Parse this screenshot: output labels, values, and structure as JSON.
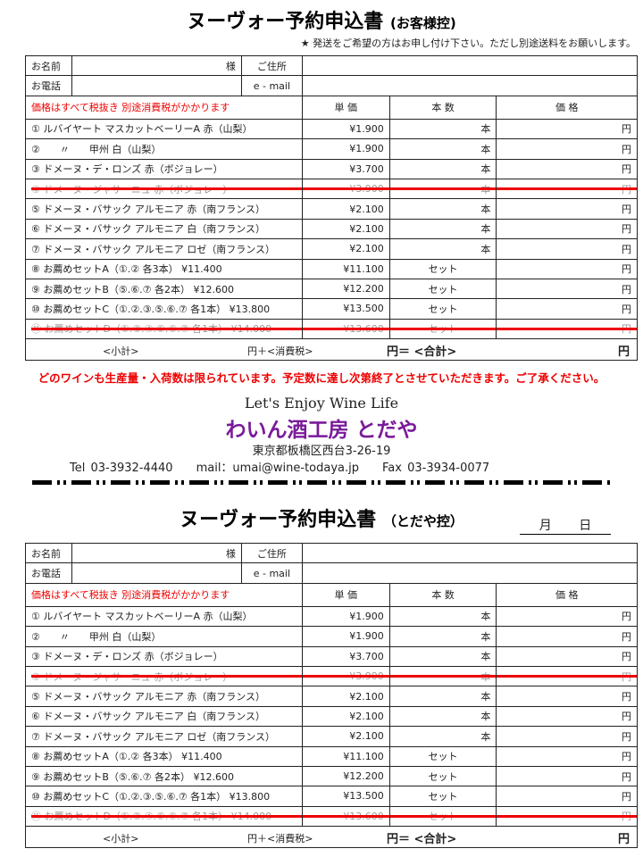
{
  "forms": [
    {
      "title": "ヌーヴォー予約申込書",
      "subtitle": "(お客様控)"
    },
    {
      "title": "ヌーヴォー予約申込書",
      "subtitle": "（とだや控）",
      "date_label": "月 日"
    }
  ],
  "shipping_note": "★ 発送をご希望の方はお申し付け下さい。ただし別途送料をお願いします。",
  "labels": {
    "name": "お名前",
    "sama": "様",
    "address": "ご住所",
    "phone": "お電話",
    "email": "e - mail",
    "tax_note": "価格はすべて税抜き 別途消費税がかかります",
    "unit_price": "単 価",
    "quantity": "本 数",
    "price": "価 格",
    "bottle": "本",
    "set": "セット",
    "yen": "円",
    "subtotal": "<小計>",
    "tax": "円＋<消費税>",
    "total": "円＝ <合計>",
    "total_yen": "円"
  },
  "items": [
    {
      "name": "① ルバイヤート マスカットベーリーA 赤（山梨）",
      "price": "¥1.900",
      "unit": "bottle",
      "struck": false
    },
    {
      "name": "②　　〃　　甲州 白（山梨）",
      "price": "¥1.900",
      "unit": "bottle",
      "struck": false
    },
    {
      "name": "③ ドメーヌ・デ・ロンズ 赤（ボジョレー）",
      "price": "¥3.700",
      "unit": "bottle",
      "struck": false
    },
    {
      "name": "④ ドメーヌ・ジャサーニュ 赤（ボジョレー）",
      "price": "¥3.900",
      "unit": "bottle",
      "struck": true
    },
    {
      "name": "⑤ ドメーヌ・バサック アルモニア 赤（南フランス）",
      "price": "¥2.100",
      "unit": "bottle",
      "struck": false
    },
    {
      "name": "⑥ ドメーヌ・バサック アルモニア 白（南フランス）",
      "price": "¥2.100",
      "unit": "bottle",
      "struck": false
    },
    {
      "name": "⑦ ドメーヌ・バサック アルモニア ロゼ（南フランス）",
      "price": "¥2.100",
      "unit": "bottle",
      "struck": false
    },
    {
      "name": "⑧ お薦めセットA（①.② 各3本） ¥11.400",
      "price": "¥11.100",
      "unit": "set",
      "struck": false
    },
    {
      "name": "⑨ お薦めセットB（⑤.⑥.⑦ 各2本） ¥12.600",
      "price": "¥12.200",
      "unit": "set",
      "struck": false
    },
    {
      "name": "⑩ お薦めセットC（①.②.③.⑤.⑥.⑦ 各1本） ¥13.800",
      "price": "¥13.500",
      "unit": "set",
      "struck": false
    },
    {
      "name": "⑪ お薦めセットD（①.②.④.⑤.⑥.⑦ 各1本） ¥14.000",
      "price": "¥13.600",
      "unit": "set",
      "struck": true
    }
  ],
  "notice": "どのワインも生産量・入荷数は限られています。予定数に達し次第終了とさせていただきます。ご了承ください。",
  "shop": {
    "slogan": "Let's Enjoy Wine Life",
    "name": "わいん酒工房 とだや",
    "address": "東京都板橋区西台3-26-19",
    "tel": "Tel 03-3932-4440",
    "mail": "mail：umai@wine-todaya.jp",
    "fax": "Fax 03-3934-0077"
  },
  "colors": {
    "red": "#e00000",
    "logo": "#7a1a9a"
  }
}
